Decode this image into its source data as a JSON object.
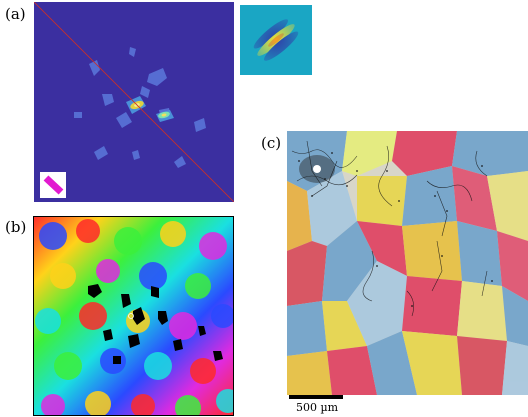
{
  "labels": {
    "a": "(a)",
    "b": "(b)",
    "c": "(c)"
  },
  "scalebar": {
    "label": "500 µm"
  },
  "colors": {
    "panel_a_background": "#3b2fa0",
    "diagonal_line": "#c8302a",
    "orientation_icon": "#e21ad0",
    "inset_background": "#1aa6c4"
  }
}
